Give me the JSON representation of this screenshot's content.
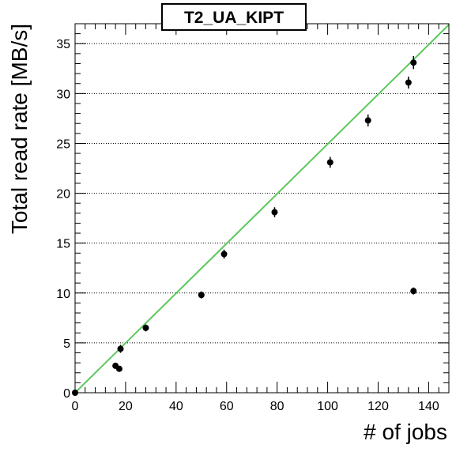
{
  "chart_data": {
    "type": "scatter",
    "title": "T2_UA_KIPT",
    "xlabel": "# of jobs",
    "ylabel": "Total read rate [MB/s]",
    "xlim": [
      0,
      148
    ],
    "ylim": [
      0,
      37
    ],
    "x_ticks": [
      0,
      20,
      40,
      60,
      80,
      100,
      120,
      140
    ],
    "y_ticks": [
      0,
      5,
      10,
      15,
      20,
      25,
      30,
      35
    ],
    "grid": "horizontal-dotted",
    "series": [
      {
        "color": "#000000",
        "points": [
          {
            "x": 0,
            "y": 0,
            "err": 0.2
          },
          {
            "x": 16,
            "y": 2.7,
            "err": 0.3
          },
          {
            "x": 17.5,
            "y": 2.4,
            "err": 0.3
          },
          {
            "x": 18,
            "y": 4.4,
            "err": 0.4
          },
          {
            "x": 28,
            "y": 6.5,
            "err": 0.35
          },
          {
            "x": 50,
            "y": 9.8,
            "err": 0.35
          },
          {
            "x": 59,
            "y": 13.9,
            "err": 0.45
          },
          {
            "x": 79,
            "y": 18.1,
            "err": 0.5
          },
          {
            "x": 101,
            "y": 23.1,
            "err": 0.55
          },
          {
            "x": 116,
            "y": 27.3,
            "err": 0.6
          },
          {
            "x": 132,
            "y": 31.1,
            "err": 0.6
          },
          {
            "x": 134,
            "y": 33.1,
            "err": 0.65
          },
          {
            "x": 134,
            "y": 10.2,
            "err": 0.35
          }
        ]
      }
    ],
    "fit_line": {
      "color": "#5cc85c",
      "x": [
        0,
        148
      ],
      "y": [
        0,
        36.9
      ]
    }
  }
}
